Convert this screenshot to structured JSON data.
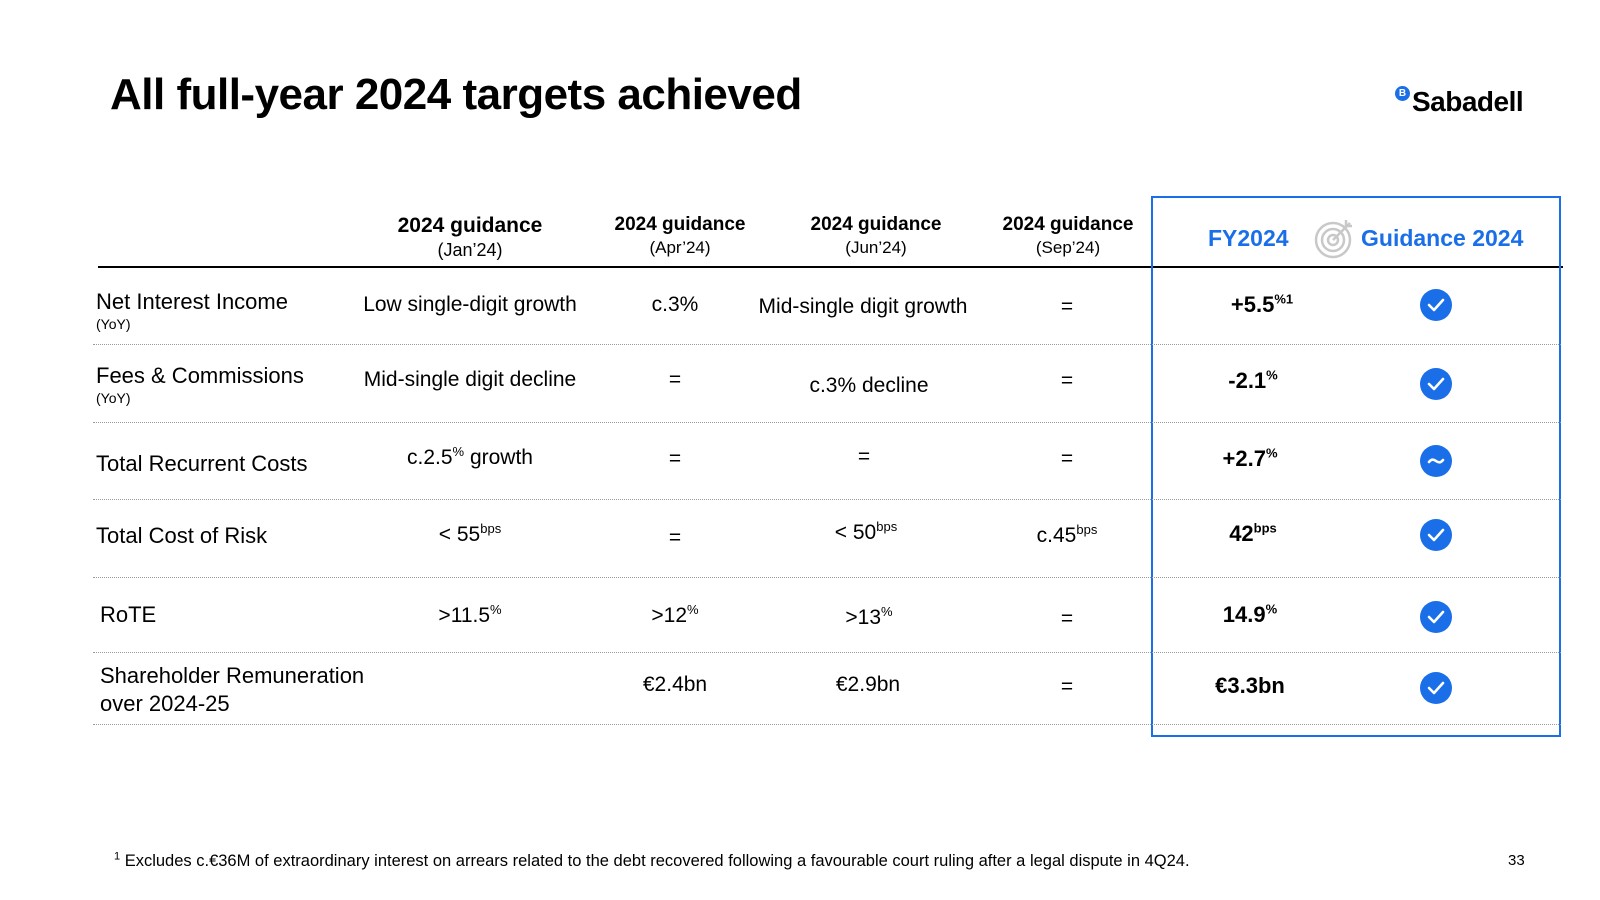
{
  "title": "All full-year 2024 targets achieved",
  "brand": {
    "name": "Sabadell",
    "mark": "B",
    "accent": "#1a6fe8"
  },
  "headers": [
    {
      "main": "2024 guidance",
      "sub": "(Jan’24)"
    },
    {
      "main": "2024 guidance",
      "sub": "(Apr’24)"
    },
    {
      "main": "2024 guidance",
      "sub": "(Jun’24)"
    },
    {
      "main": "2024 guidance",
      "sub": "(Sep’24)"
    }
  ],
  "fy_header": "FY2024",
  "guidance_header": "Guidance 2024",
  "guidance_header_icon": "target-icon",
  "rows": [
    {
      "label": "Net Interest Income",
      "sublabel": "(YoY)",
      "jan": {
        "text": "Low single-digit growth",
        "sup": ""
      },
      "apr": {
        "text": "c.3%",
        "sup": ""
      },
      "jun": {
        "text": "Mid-single digit growth",
        "sup": ""
      },
      "sep": {
        "text": "=",
        "sup": ""
      },
      "fy": {
        "text": "+5.5",
        "sup": "%1"
      },
      "status_icon": "check-icon"
    },
    {
      "label": "Fees & Commissions",
      "sublabel": "(YoY)",
      "jan": {
        "text": "Mid-single digit decline",
        "sup": ""
      },
      "apr": {
        "text": "=",
        "sup": ""
      },
      "jun": {
        "text": "c.3% decline",
        "sup": ""
      },
      "sep": {
        "text": "=",
        "sup": ""
      },
      "fy": {
        "text": "-2.1",
        "sup": "%"
      },
      "status_icon": "check-icon"
    },
    {
      "label": "Total Recurrent Costs",
      "sublabel": "",
      "jan": {
        "text": "c.2.5",
        "sup": "%",
        "after": " growth"
      },
      "apr": {
        "text": "=",
        "sup": ""
      },
      "jun": {
        "text": "=",
        "sup": ""
      },
      "sep": {
        "text": "=",
        "sup": ""
      },
      "fy": {
        "text": "+2.7",
        "sup": "%"
      },
      "status_icon": "tilde-icon"
    },
    {
      "label": "Total Cost of Risk",
      "sublabel": "",
      "jan": {
        "text": "< 55",
        "sup": "bps"
      },
      "apr": {
        "text": "=",
        "sup": ""
      },
      "jun": {
        "text": "< 50",
        "sup": "bps"
      },
      "sep": {
        "text": "c.45",
        "sup": "bps"
      },
      "fy": {
        "text": "42",
        "sup": "bps"
      },
      "status_icon": "check-icon"
    },
    {
      "label": "RoTE",
      "sublabel": "",
      "jan": {
        "text": ">11.5",
        "sup": "%"
      },
      "apr": {
        "text": ">12",
        "sup": "%"
      },
      "jun": {
        "text": ">13",
        "sup": "%"
      },
      "sep": {
        "text": "=",
        "sup": ""
      },
      "fy": {
        "text": "14.9",
        "sup": "%"
      },
      "status_icon": "check-icon"
    },
    {
      "label": "Shareholder Remuneration",
      "label2": "over 2024-25",
      "sublabel": "",
      "jan": {
        "text": "",
        "sup": ""
      },
      "apr": {
        "text": "€2.4bn",
        "sup": ""
      },
      "jun": {
        "text": "€2.9bn",
        "sup": ""
      },
      "sep": {
        "text": "=",
        "sup": ""
      },
      "fy": {
        "text": "€3.3bn",
        "sup": ""
      },
      "status_icon": "check-icon"
    }
  ],
  "footnote": {
    "marker": "1",
    "text": " Excludes c.€36M of extraordinary interest on arrears related to the debt recovered following a favourable court ruling after a legal dispute in 4Q24."
  },
  "page_number": "33"
}
